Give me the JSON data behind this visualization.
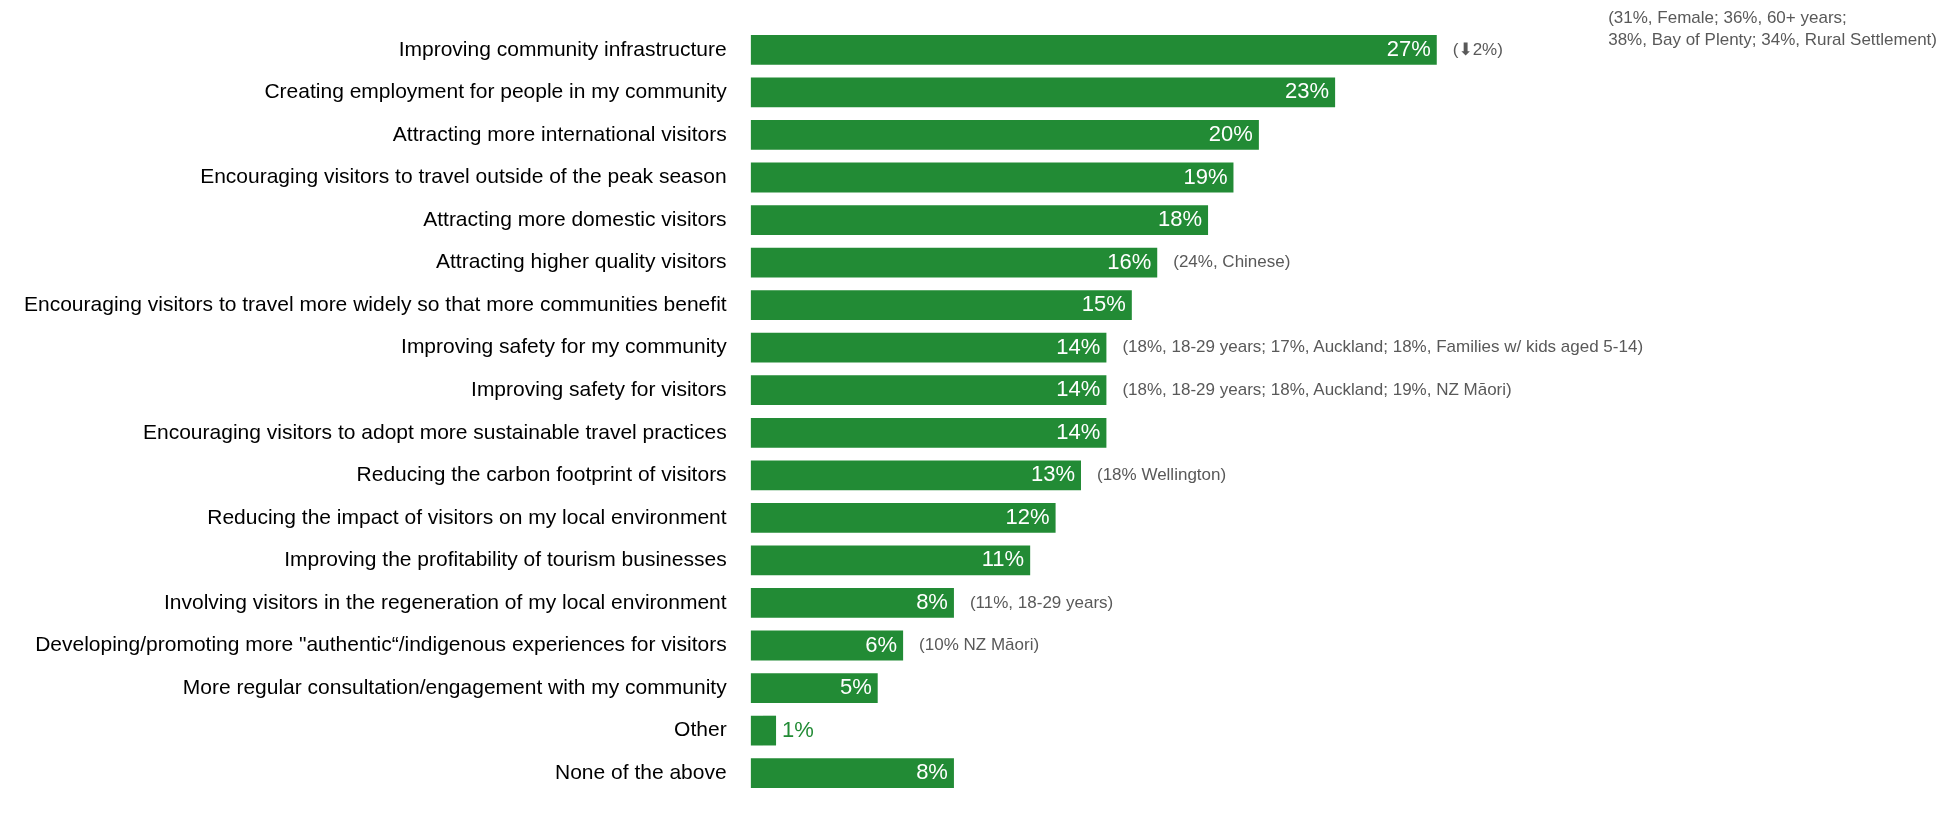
{
  "chart_data": {
    "type": "bar",
    "orientation": "horizontal",
    "categories": [
      "Improving community infrastructure",
      "Creating employment for people in my community",
      "Attracting more international visitors",
      "Encouraging visitors to travel outside of the peak season",
      "Attracting more domestic visitors",
      "Attracting higher quality visitors",
      "Encouraging visitors to travel more widely so that more communities benefit",
      "Improving safety for my community",
      "Improving safety for visitors",
      "Encouraging visitors to adopt more sustainable travel practices",
      "Reducing the carbon footprint of visitors",
      "Reducing the impact of visitors on my local environment",
      "Improving the profitability of tourism businesses",
      "Involving visitors in the regeneration of my local environment",
      "Developing/promoting more \"authentic“/indigenous experiences for visitors",
      "More regular consultation/engagement with my community",
      "Other",
      "None of the above"
    ],
    "values": [
      27,
      23,
      20,
      19,
      18,
      16,
      15,
      14,
      14,
      14,
      13,
      12,
      11,
      8,
      6,
      5,
      1,
      8
    ],
    "value_labels": [
      "27%",
      "23%",
      "20%",
      "19%",
      "18%",
      "16%",
      "15%",
      "14%",
      "14%",
      "14%",
      "13%",
      "12%",
      "11%",
      "8%",
      "6%",
      "5%",
      "1%",
      "8%"
    ],
    "color": "#228b35",
    "legend": false,
    "tick_labels": "y",
    "annotations": [
      {
        "text": "(⬇2%)",
        "x": 27,
        "y": "Improving community infrastructure"
      },
      "(31%, Female; 36%, 60+ years;\n38%, Bay of Plenty; 34%, Rural Settlement)",
      {
        "text": "(24%, Chinese)",
        "x": 16,
        "y": "Attracting higher quality visitors"
      },
      {
        "text": "(18%, 18-29 years; 17%, Auckland; 18%, Families w/ kids aged 5-14)",
        "x": 14,
        "y": "Improving safety for my community"
      },
      {
        "text": "(18%, 18-29 years; 18%, Auckland; 19%, NZ Māori)",
        "x": 14,
        "y": "Improving safety for visitors"
      },
      {
        "text": "(18% Wellington)",
        "x": 13,
        "y": "Reducing the carbon footprint of visitors"
      },
      {
        "text": "(11%, 18-29 years)",
        "x": 8,
        "y": "Involving visitors in the regeneration of my local environment"
      },
      {
        "text": "(10% NZ Māori)",
        "x": 6,
        "y": "Developing/promoting more \"authentic“/indigenous experiences for visitors"
      }
    ]
  }
}
